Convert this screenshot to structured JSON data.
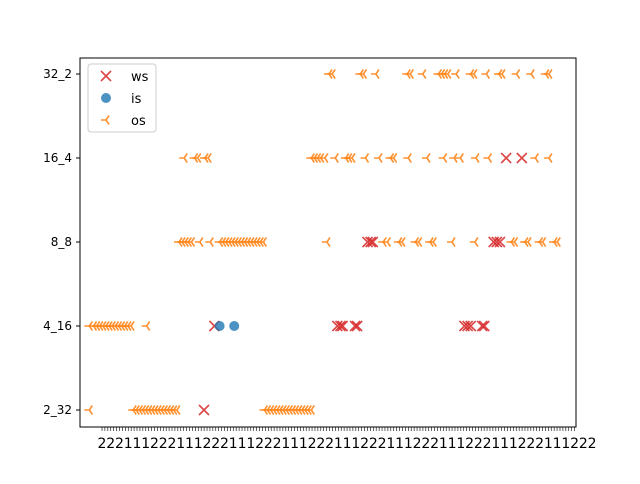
{
  "chart_data": {
    "type": "scatter",
    "y_categories": [
      "2_32",
      "4_16",
      "8_8",
      "16_4",
      "32_2"
    ],
    "x_tick_labels_note": "dense overlapping numeric tick labels along x axis (illegible)",
    "x_tick_count": 170,
    "x_tick_sample_labels": [
      "2",
      "2",
      "2",
      "1",
      "1",
      "1"
    ],
    "legend_position": "top-left",
    "grid": false,
    "series": [
      {
        "name": "ws",
        "marker": "x",
        "color": "#d62728",
        "points": [
          {
            "x": 110,
            "y": "2_32"
          },
          {
            "x": 120,
            "y": "4_16"
          },
          {
            "x": 238,
            "y": "4_16"
          },
          {
            "x": 241,
            "y": "4_16"
          },
          {
            "x": 243,
            "y": "4_16"
          },
          {
            "x": 255,
            "y": "4_16"
          },
          {
            "x": 257,
            "y": "4_16"
          },
          {
            "x": 360,
            "y": "4_16"
          },
          {
            "x": 363,
            "y": "4_16"
          },
          {
            "x": 366,
            "y": "4_16"
          },
          {
            "x": 377,
            "y": "4_16"
          },
          {
            "x": 379,
            "y": "4_16"
          },
          {
            "x": 267,
            "y": "8_8"
          },
          {
            "x": 270,
            "y": "8_8"
          },
          {
            "x": 272,
            "y": "8_8"
          },
          {
            "x": 388,
            "y": "8_8"
          },
          {
            "x": 391,
            "y": "8_8"
          },
          {
            "x": 394,
            "y": "8_8"
          },
          {
            "x": 400,
            "y": "16_4"
          },
          {
            "x": 415,
            "y": "16_4"
          }
        ]
      },
      {
        "name": "is",
        "marker": "o",
        "color": "#1f77b4",
        "points": [
          {
            "x": 125,
            "y": "4_16"
          },
          {
            "x": 139,
            "y": "4_16"
          }
        ]
      },
      {
        "name": "os",
        "marker": "tri_left",
        "color": "#ff7f0e",
        "points": [
          {
            "x": 0,
            "y": "2_32"
          },
          {
            "x": 42,
            "y": "2_32"
          },
          {
            "x": 45,
            "y": "2_32"
          },
          {
            "x": 48,
            "y": "2_32"
          },
          {
            "x": 51,
            "y": "2_32"
          },
          {
            "x": 54,
            "y": "2_32"
          },
          {
            "x": 57,
            "y": "2_32"
          },
          {
            "x": 60,
            "y": "2_32"
          },
          {
            "x": 63,
            "y": "2_32"
          },
          {
            "x": 66,
            "y": "2_32"
          },
          {
            "x": 69,
            "y": "2_32"
          },
          {
            "x": 72,
            "y": "2_32"
          },
          {
            "x": 75,
            "y": "2_32"
          },
          {
            "x": 78,
            "y": "2_32"
          },
          {
            "x": 81,
            "y": "2_32"
          },
          {
            "x": 84,
            "y": "2_32"
          },
          {
            "x": 168,
            "y": "2_32"
          },
          {
            "x": 171,
            "y": "2_32"
          },
          {
            "x": 174,
            "y": "2_32"
          },
          {
            "x": 177,
            "y": "2_32"
          },
          {
            "x": 180,
            "y": "2_32"
          },
          {
            "x": 183,
            "y": "2_32"
          },
          {
            "x": 186,
            "y": "2_32"
          },
          {
            "x": 189,
            "y": "2_32"
          },
          {
            "x": 192,
            "y": "2_32"
          },
          {
            "x": 195,
            "y": "2_32"
          },
          {
            "x": 198,
            "y": "2_32"
          },
          {
            "x": 201,
            "y": "2_32"
          },
          {
            "x": 204,
            "y": "2_32"
          },
          {
            "x": 207,
            "y": "2_32"
          },
          {
            "x": 210,
            "y": "2_32"
          },
          {
            "x": 213,
            "y": "2_32"
          },
          {
            "x": 0,
            "y": "4_16"
          },
          {
            "x": 4,
            "y": "4_16"
          },
          {
            "x": 7,
            "y": "4_16"
          },
          {
            "x": 10,
            "y": "4_16"
          },
          {
            "x": 13,
            "y": "4_16"
          },
          {
            "x": 16,
            "y": "4_16"
          },
          {
            "x": 19,
            "y": "4_16"
          },
          {
            "x": 22,
            "y": "4_16"
          },
          {
            "x": 25,
            "y": "4_16"
          },
          {
            "x": 28,
            "y": "4_16"
          },
          {
            "x": 31,
            "y": "4_16"
          },
          {
            "x": 34,
            "y": "4_16"
          },
          {
            "x": 37,
            "y": "4_16"
          },
          {
            "x": 40,
            "y": "4_16"
          },
          {
            "x": 55,
            "y": "4_16"
          },
          {
            "x": 86,
            "y": "8_8"
          },
          {
            "x": 89,
            "y": "8_8"
          },
          {
            "x": 92,
            "y": "8_8"
          },
          {
            "x": 95,
            "y": "8_8"
          },
          {
            "x": 98,
            "y": "8_8"
          },
          {
            "x": 106,
            "y": "8_8"
          },
          {
            "x": 116,
            "y": "8_8"
          },
          {
            "x": 125,
            "y": "8_8"
          },
          {
            "x": 128,
            "y": "8_8"
          },
          {
            "x": 131,
            "y": "8_8"
          },
          {
            "x": 134,
            "y": "8_8"
          },
          {
            "x": 137,
            "y": "8_8"
          },
          {
            "x": 140,
            "y": "8_8"
          },
          {
            "x": 143,
            "y": "8_8"
          },
          {
            "x": 146,
            "y": "8_8"
          },
          {
            "x": 149,
            "y": "8_8"
          },
          {
            "x": 152,
            "y": "8_8"
          },
          {
            "x": 155,
            "y": "8_8"
          },
          {
            "x": 158,
            "y": "8_8"
          },
          {
            "x": 161,
            "y": "8_8"
          },
          {
            "x": 164,
            "y": "8_8"
          },
          {
            "x": 167,
            "y": "8_8"
          },
          {
            "x": 228,
            "y": "8_8"
          },
          {
            "x": 282,
            "y": "8_8"
          },
          {
            "x": 286,
            "y": "8_8"
          },
          {
            "x": 297,
            "y": "8_8"
          },
          {
            "x": 300,
            "y": "8_8"
          },
          {
            "x": 313,
            "y": "8_8"
          },
          {
            "x": 316,
            "y": "8_8"
          },
          {
            "x": 327,
            "y": "8_8"
          },
          {
            "x": 330,
            "y": "8_8"
          },
          {
            "x": 348,
            "y": "8_8"
          },
          {
            "x": 370,
            "y": "8_8"
          },
          {
            "x": 405,
            "y": "8_8"
          },
          {
            "x": 408,
            "y": "8_8"
          },
          {
            "x": 418,
            "y": "8_8"
          },
          {
            "x": 421,
            "y": "8_8"
          },
          {
            "x": 432,
            "y": "8_8"
          },
          {
            "x": 435,
            "y": "8_8"
          },
          {
            "x": 446,
            "y": "8_8"
          },
          {
            "x": 449,
            "y": "8_8"
          },
          {
            "x": 91,
            "y": "16_4"
          },
          {
            "x": 101,
            "y": "16_4"
          },
          {
            "x": 104,
            "y": "16_4"
          },
          {
            "x": 111,
            "y": "16_4"
          },
          {
            "x": 114,
            "y": "16_4"
          },
          {
            "x": 213,
            "y": "16_4"
          },
          {
            "x": 216,
            "y": "16_4"
          },
          {
            "x": 219,
            "y": "16_4"
          },
          {
            "x": 222,
            "y": "16_4"
          },
          {
            "x": 226,
            "y": "16_4"
          },
          {
            "x": 236,
            "y": "16_4"
          },
          {
            "x": 246,
            "y": "16_4"
          },
          {
            "x": 249,
            "y": "16_4"
          },
          {
            "x": 252,
            "y": "16_4"
          },
          {
            "x": 265,
            "y": "16_4"
          },
          {
            "x": 278,
            "y": "16_4"
          },
          {
            "x": 289,
            "y": "16_4"
          },
          {
            "x": 292,
            "y": "16_4"
          },
          {
            "x": 306,
            "y": "16_4"
          },
          {
            "x": 324,
            "y": "16_4"
          },
          {
            "x": 340,
            "y": "16_4"
          },
          {
            "x": 350,
            "y": "16_4"
          },
          {
            "x": 356,
            "y": "16_4"
          },
          {
            "x": 371,
            "y": "16_4"
          },
          {
            "x": 383,
            "y": "16_4"
          },
          {
            "x": 428,
            "y": "16_4"
          },
          {
            "x": 441,
            "y": "16_4"
          },
          {
            "x": 230,
            "y": "32_2"
          },
          {
            "x": 233,
            "y": "32_2"
          },
          {
            "x": 260,
            "y": "32_2"
          },
          {
            "x": 263,
            "y": "32_2"
          },
          {
            "x": 275,
            "y": "32_2"
          },
          {
            "x": 305,
            "y": "32_2"
          },
          {
            "x": 308,
            "y": "32_2"
          },
          {
            "x": 320,
            "y": "32_2"
          },
          {
            "x": 335,
            "y": "32_2"
          },
          {
            "x": 338,
            "y": "32_2"
          },
          {
            "x": 341,
            "y": "32_2"
          },
          {
            "x": 344,
            "y": "32_2"
          },
          {
            "x": 352,
            "y": "32_2"
          },
          {
            "x": 366,
            "y": "32_2"
          },
          {
            "x": 369,
            "y": "32_2"
          },
          {
            "x": 381,
            "y": "32_2"
          },
          {
            "x": 393,
            "y": "32_2"
          },
          {
            "x": 396,
            "y": "32_2"
          },
          {
            "x": 410,
            "y": "32_2"
          },
          {
            "x": 424,
            "y": "32_2"
          },
          {
            "x": 438,
            "y": "32_2"
          },
          {
            "x": 441,
            "y": "32_2"
          }
        ]
      }
    ],
    "xlim": [
      -9,
      467
    ],
    "title": "",
    "xlabel": "",
    "ylabel": ""
  },
  "legend": {
    "items": [
      {
        "label": "ws",
        "color": "#d62728",
        "marker": "x"
      },
      {
        "label": "is",
        "color": "#1f77b4",
        "marker": "o"
      },
      {
        "label": "os",
        "color": "#ff7f0e",
        "marker": "tri_left"
      }
    ]
  }
}
